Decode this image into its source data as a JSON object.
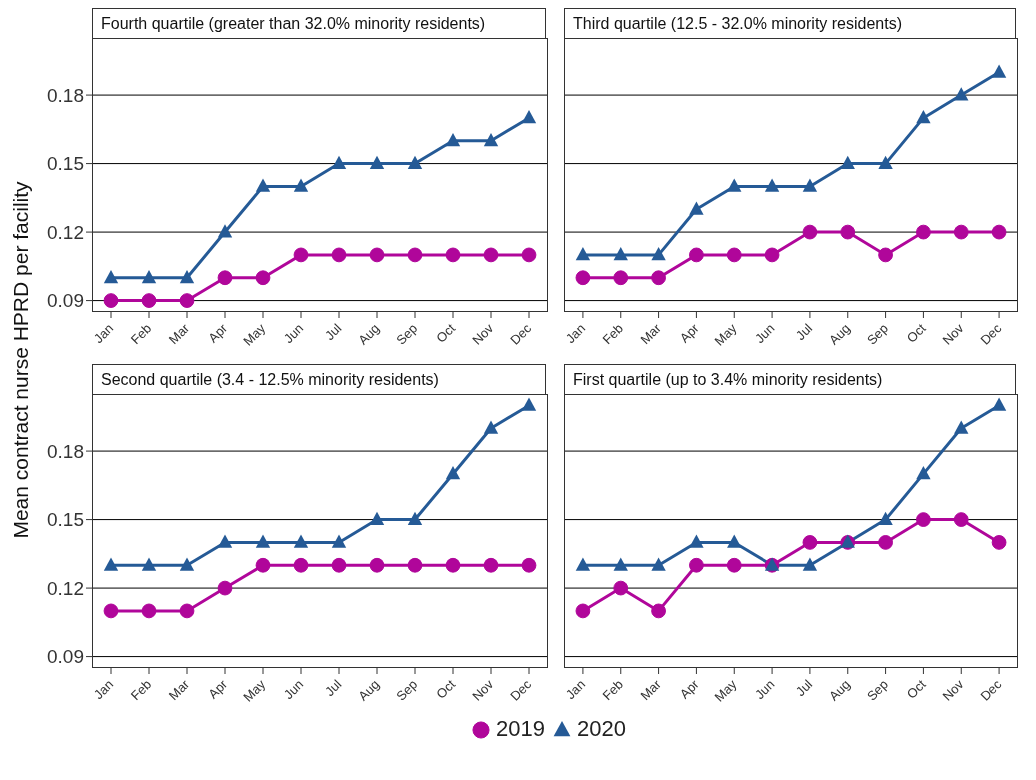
{
  "chart_data": [
    {
      "type": "line",
      "title": "Fourth quartile (greater than 32.0% minority residents)",
      "ylabel": "Mean contract nurse HPRD per facility",
      "categories": [
        "Jan",
        "Feb",
        "Mar",
        "Apr",
        "May",
        "Jun",
        "Jul",
        "Aug",
        "Sep",
        "Oct",
        "Nov",
        "Dec"
      ],
      "series": [
        {
          "name": "2019",
          "color": "#b0069a",
          "marker": "circle",
          "values": [
            0.09,
            0.09,
            0.09,
            0.1,
            0.1,
            0.11,
            0.11,
            0.11,
            0.11,
            0.11,
            0.11,
            0.11
          ]
        },
        {
          "name": "2020",
          "color": "#255a96",
          "marker": "triangle",
          "values": [
            0.1,
            0.1,
            0.1,
            0.12,
            0.14,
            0.14,
            0.15,
            0.15,
            0.15,
            0.16,
            0.16,
            0.17
          ]
        }
      ],
      "ylim": [
        0.085,
        0.205
      ],
      "yticks": [
        0.09,
        0.12,
        0.15,
        0.18
      ],
      "grid": "y",
      "legend": "bottom",
      "line_style": "solid"
    },
    {
      "type": "line",
      "title": "Third quartile (12.5 - 32.0% minority residents)",
      "categories": [
        "Jan",
        "Feb",
        "Mar",
        "Apr",
        "May",
        "Jun",
        "Jul",
        "Aug",
        "Sep",
        "Oct",
        "Nov",
        "Dec"
      ],
      "series": [
        {
          "name": "2019",
          "color": "#b0069a",
          "marker": "circle",
          "values": [
            0.1,
            0.1,
            0.1,
            0.11,
            0.11,
            0.11,
            0.12,
            0.12,
            0.11,
            0.12,
            0.12,
            0.12
          ]
        },
        {
          "name": "2020",
          "color": "#255a96",
          "marker": "triangle",
          "values": [
            0.11,
            0.11,
            0.11,
            0.13,
            0.14,
            0.14,
            0.14,
            0.15,
            0.15,
            0.17,
            0.18,
            0.19
          ]
        }
      ],
      "ylim": [
        0.085,
        0.205
      ],
      "yticks": [
        0.09,
        0.12,
        0.15,
        0.18
      ],
      "grid": "y",
      "tick_labels": "x",
      "line_style": "solid"
    },
    {
      "type": "line",
      "title": "Second quartile (3.4 - 12.5% minority residents)",
      "categories": [
        "Jan",
        "Feb",
        "Mar",
        "Apr",
        "May",
        "Jun",
        "Jul",
        "Aug",
        "Sep",
        "Oct",
        "Nov",
        "Dec"
      ],
      "series": [
        {
          "name": "2019",
          "color": "#b0069a",
          "marker": "circle",
          "values": [
            0.11,
            0.11,
            0.11,
            0.12,
            0.13,
            0.13,
            0.13,
            0.13,
            0.13,
            0.13,
            0.13,
            0.13
          ]
        },
        {
          "name": "2020",
          "color": "#255a96",
          "marker": "triangle",
          "values": [
            0.13,
            0.13,
            0.13,
            0.14,
            0.14,
            0.14,
            0.14,
            0.15,
            0.15,
            0.17,
            0.19,
            0.2
          ]
        }
      ],
      "ylim": [
        0.085,
        0.205
      ],
      "yticks": [
        0.09,
        0.12,
        0.15,
        0.18
      ],
      "grid": "y",
      "line_style": "solid"
    },
    {
      "type": "line",
      "title": "First quartile (up to 3.4% minority residents)",
      "categories": [
        "Jan",
        "Feb",
        "Mar",
        "Apr",
        "May",
        "Jun",
        "Jul",
        "Aug",
        "Sep",
        "Oct",
        "Nov",
        "Dec"
      ],
      "series": [
        {
          "name": "2019",
          "color": "#b0069a",
          "marker": "circle",
          "values": [
            0.11,
            0.12,
            0.11,
            0.13,
            0.13,
            0.13,
            0.14,
            0.14,
            0.14,
            0.15,
            0.15,
            0.14
          ]
        },
        {
          "name": "2020",
          "color": "#255a96",
          "marker": "triangle",
          "values": [
            0.13,
            0.13,
            0.13,
            0.14,
            0.14,
            0.13,
            0.13,
            0.14,
            0.15,
            0.17,
            0.19,
            0.2
          ]
        }
      ],
      "ylim": [
        0.085,
        0.205
      ],
      "yticks": [
        0.09,
        0.12,
        0.15,
        0.18
      ],
      "grid": "y",
      "tick_labels": "x",
      "line_style": "solid"
    }
  ]
}
